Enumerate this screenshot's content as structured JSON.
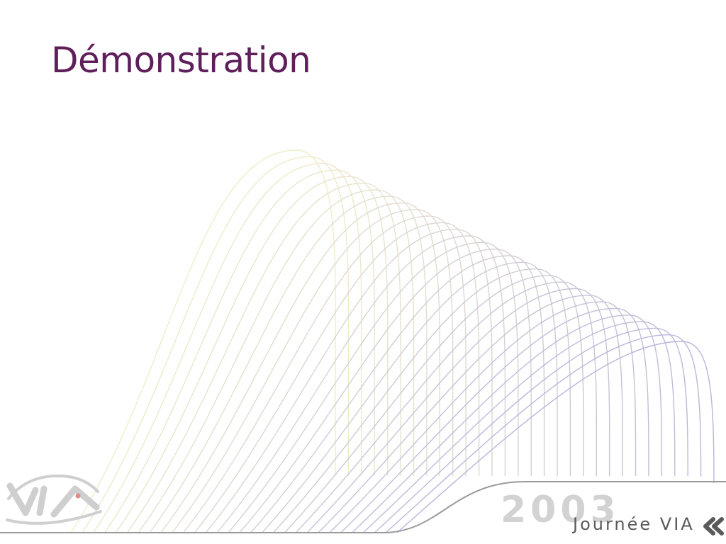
{
  "slide": {
    "title": "Démonstration",
    "footer": {
      "year": "2003",
      "event": "Journée VIA"
    }
  },
  "colors": {
    "title": "#5e1f5a",
    "wave_warm": "#f1ecc9",
    "wave_cool": "#b9b5dc",
    "footer_line": "#9a9a9a",
    "footer_year": "#d2d2d2",
    "footer_event": "#5a5a5a",
    "logo": "#cfcfcf",
    "logo_dot": "#e08a8a"
  },
  "icons": {
    "logo": "via-logo-icon",
    "chevrons": "double-chevron-left-icon"
  }
}
